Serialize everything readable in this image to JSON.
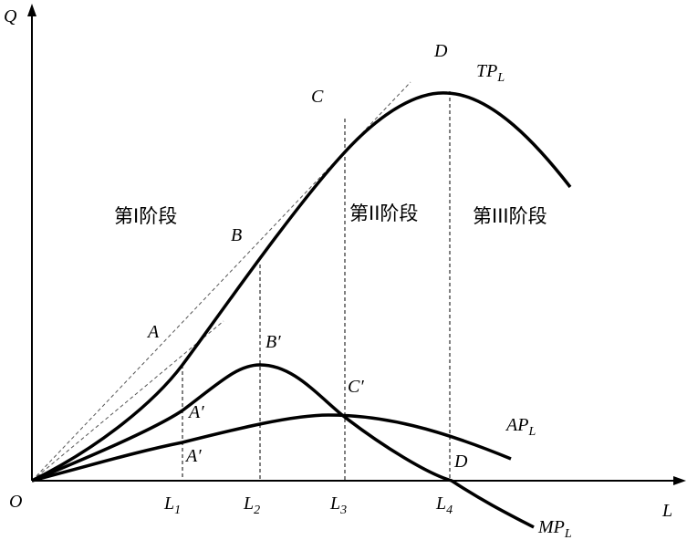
{
  "axes": {
    "y": "Q",
    "x": "L",
    "origin": "O"
  },
  "x_labels": [
    {
      "main": "L",
      "sub": "1"
    },
    {
      "main": "L",
      "sub": "2"
    },
    {
      "main": "L",
      "sub": "3"
    },
    {
      "main": "L",
      "sub": "4"
    }
  ],
  "points": {
    "A": "A",
    "B": "B",
    "C": "C",
    "D": "D",
    "A1": "A′",
    "A2": "A′",
    "B1": "B′",
    "C1": "C′",
    "D1": "D"
  },
  "curves": {
    "tp": {
      "main": "TP",
      "sub": "L"
    },
    "ap": {
      "main": "AP",
      "sub": "L"
    },
    "mp": {
      "main": "MP",
      "sub": "L"
    }
  },
  "stages": [
    "第I阶段",
    "第II阶段",
    "第III阶段"
  ]
}
